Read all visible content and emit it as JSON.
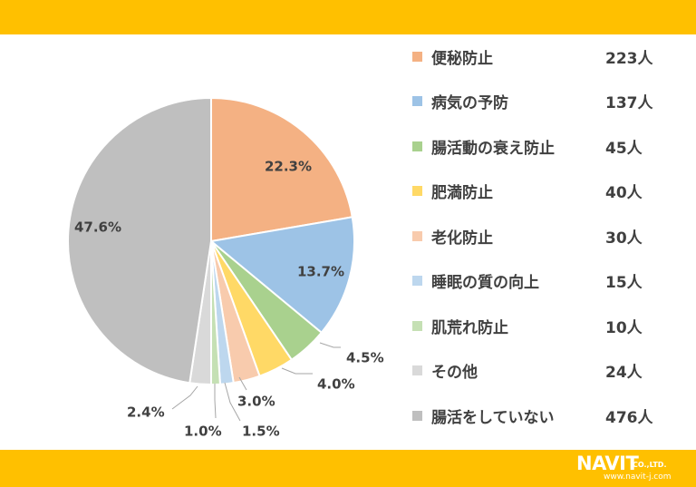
{
  "chart_data": {
    "type": "pie",
    "start_angle_deg": 0,
    "direction": "clockwise",
    "slices": [
      {
        "label": "便秘防止",
        "count": "223人",
        "value": 22.3,
        "value_label": "22.3%",
        "color": "#F4B183"
      },
      {
        "label": "病気の予防",
        "count": "137人",
        "value": 13.7,
        "value_label": "13.7%",
        "color": "#9DC3E6"
      },
      {
        "label": "腸活動の衰え防止",
        "count": "45人",
        "value": 4.5,
        "value_label": "4.5%",
        "color": "#A9D18E"
      },
      {
        "label": "肥満防止",
        "count": "40人",
        "value": 4.0,
        "value_label": "4.0%",
        "color": "#FFD966"
      },
      {
        "label": "老化防止",
        "count": "30人",
        "value": 3.0,
        "value_label": "3.0%",
        "color": "#F8CBAD"
      },
      {
        "label": "睡眠の質の向上",
        "count": "15人",
        "value": 1.5,
        "value_label": "1.5%",
        "color": "#BDD7EE"
      },
      {
        "label": "肌荒れ防止",
        "count": "10人",
        "value": 1.0,
        "value_label": "1.0%",
        "color": "#C5E0B4"
      },
      {
        "label": "その他",
        "count": "24人",
        "value": 2.4,
        "value_label": "2.4%",
        "color": "#D9D9D9"
      },
      {
        "label": "腸活をしていない",
        "count": "476人",
        "value": 47.6,
        "value_label": "47.6%",
        "color": "#BFBFBF"
      }
    ],
    "legend_position": "right"
  },
  "logo": {
    "brand_text": "NAVIT",
    "company_suffix": "CO.,LTD.",
    "url": "www.navit-j.com"
  }
}
